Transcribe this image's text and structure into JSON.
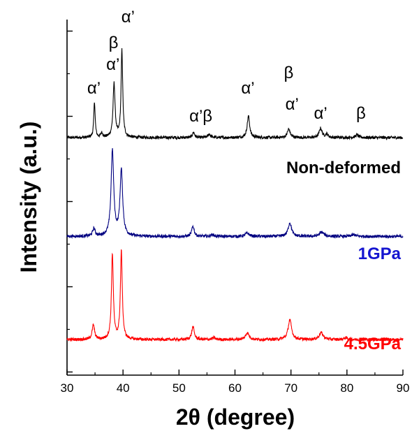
{
  "chart_data": {
    "type": "line",
    "xlabel": "2θ (degree)",
    "ylabel": "Intensity (a.u.)",
    "xlim": [
      30,
      90
    ],
    "x_ticks": [
      30,
      40,
      50,
      60,
      70,
      80,
      90
    ],
    "y_tick_labels": "none",
    "grid": false,
    "legend": "none (series labelled directly on plot)",
    "stacking": "vertically offset curves",
    "series": [
      {
        "name": "Non-deformed",
        "color": "#000000",
        "baseline": 0.0,
        "peaks": [
          {
            "x": 34.9,
            "height": 0.42,
            "width": 0.22
          },
          {
            "x": 36.2,
            "height": 0.05,
            "width": 0.3
          },
          {
            "x": 38.4,
            "height": 0.63,
            "width": 0.32
          },
          {
            "x": 39.8,
            "height": 1.02,
            "width": 0.26
          },
          {
            "x": 52.6,
            "height": 0.06,
            "width": 0.35
          },
          {
            "x": 55.4,
            "height": 0.04,
            "width": 0.4
          },
          {
            "x": 62.4,
            "height": 0.25,
            "width": 0.4
          },
          {
            "x": 69.6,
            "height": 0.1,
            "width": 0.45
          },
          {
            "x": 75.3,
            "height": 0.11,
            "width": 0.45
          },
          {
            "x": 76.4,
            "height": 0.04,
            "width": 0.4
          },
          {
            "x": 81.8,
            "height": 0.03,
            "width": 0.5
          }
        ]
      },
      {
        "name": "1GPa",
        "color": "#000080",
        "baseline": -1.16,
        "peaks": [
          {
            "x": 34.8,
            "height": 0.09,
            "width": 0.4
          },
          {
            "x": 38.1,
            "height": 1.0,
            "width": 0.42
          },
          {
            "x": 39.7,
            "height": 0.77,
            "width": 0.42
          },
          {
            "x": 52.5,
            "height": 0.12,
            "width": 0.4
          },
          {
            "x": 56.0,
            "height": 0.02,
            "width": 0.5
          },
          {
            "x": 62.2,
            "height": 0.04,
            "width": 0.6
          },
          {
            "x": 69.8,
            "height": 0.16,
            "width": 0.55
          },
          {
            "x": 75.5,
            "height": 0.05,
            "width": 0.7
          },
          {
            "x": 81.2,
            "height": 0.02,
            "width": 0.7
          }
        ]
      },
      {
        "name": "4.5GPa",
        "color": "#ff0000",
        "baseline": -2.37,
        "peaks": [
          {
            "x": 34.7,
            "height": 0.17,
            "width": 0.38
          },
          {
            "x": 38.1,
            "height": 1.0,
            "width": 0.3
          },
          {
            "x": 39.7,
            "height": 1.03,
            "width": 0.3
          },
          {
            "x": 52.5,
            "height": 0.15,
            "width": 0.4
          },
          {
            "x": 56.2,
            "height": 0.02,
            "width": 0.5
          },
          {
            "x": 62.2,
            "height": 0.08,
            "width": 0.55
          },
          {
            "x": 69.8,
            "height": 0.23,
            "width": 0.55
          },
          {
            "x": 75.4,
            "height": 0.08,
            "width": 0.65
          },
          {
            "x": 79.8,
            "height": 0.02,
            "width": 0.6
          }
        ]
      }
    ],
    "phase_annotations": [
      {
        "text": "α’",
        "x": 34.8
      },
      {
        "text": "α’",
        "x": 38.2
      },
      {
        "text": "β",
        "x": 38.3
      },
      {
        "text": "α’",
        "x": 39.9
      },
      {
        "text": "α’β",
        "x": 53.9
      },
      {
        "text": "α’",
        "x": 62.3
      },
      {
        "text": "β",
        "x": 69.6
      },
      {
        "text": "α’",
        "x": 70.2
      },
      {
        "text": "α’",
        "x": 75.3
      },
      {
        "text": "β",
        "x": 82.5
      }
    ]
  }
}
